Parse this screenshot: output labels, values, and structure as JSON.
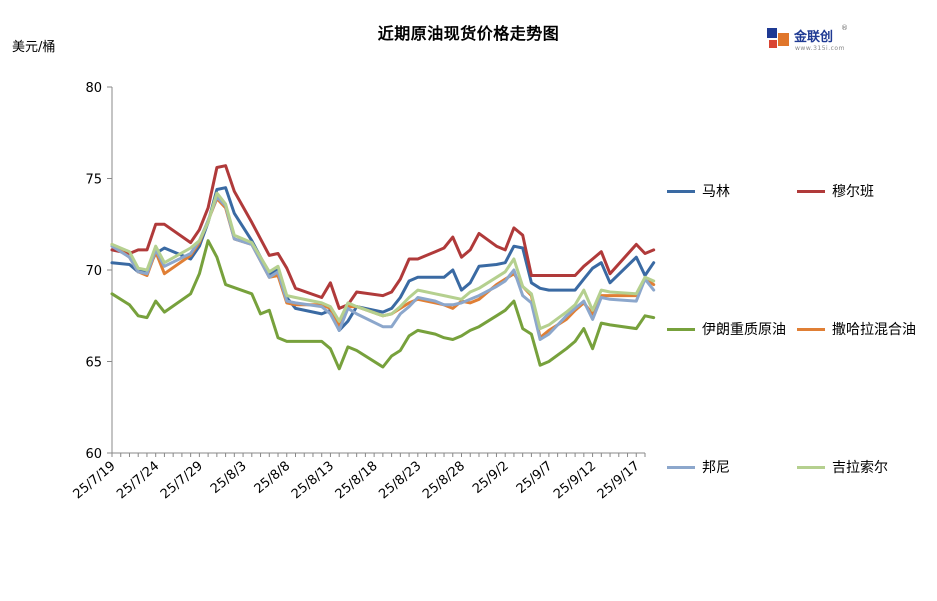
{
  "title": "近期原油现货价格走势图",
  "unit_label": "美元/桶",
  "logo": {
    "name": "金联创",
    "url": "www.315i.com",
    "mark": "®"
  },
  "chart_data": {
    "type": "line",
    "ylim": [
      60,
      80
    ],
    "yticks": [
      60,
      65,
      70,
      75,
      80
    ],
    "x_tick_labels": [
      "25/7/19",
      "25/7/24",
      "25/7/29",
      "25/8/3",
      "25/8/8",
      "25/8/13",
      "25/8/18",
      "25/8/23",
      "25/8/28",
      "25/9/2",
      "25/9/7",
      "25/9/12",
      "25/9/17"
    ],
    "x_tick_index": [
      0,
      5,
      10,
      15,
      20,
      25,
      30,
      35,
      40,
      45,
      50,
      55,
      60
    ],
    "x_dates": [
      "7/19",
      "7/20",
      "7/21",
      "7/22",
      "7/23",
      "7/24",
      "7/25",
      "7/26",
      "7/27",
      "7/28",
      "7/29",
      "7/30",
      "7/31",
      "8/1",
      "8/2",
      "8/3",
      "8/4",
      "8/5",
      "8/6",
      "8/7",
      "8/8",
      "8/9",
      "8/10",
      "8/11",
      "8/12",
      "8/13",
      "8/14",
      "8/15",
      "8/16",
      "8/17",
      "8/18",
      "8/19",
      "8/20",
      "8/21",
      "8/22",
      "8/23",
      "8/24",
      "8/25",
      "8/26",
      "8/27",
      "8/28",
      "8/29",
      "8/30",
      "8/31",
      "9/1",
      "9/2",
      "9/3",
      "9/4",
      "9/5",
      "9/6",
      "9/7",
      "9/8",
      "9/9",
      "9/10",
      "9/11",
      "9/12",
      "9/13",
      "9/14",
      "9/15",
      "9/16",
      "9/17",
      "9/18"
    ],
    "grid": false,
    "legend_position": "right",
    "series": [
      {
        "name": "马林",
        "color": "#3a6aa3",
        "points": [
          [
            0,
            70.4
          ],
          [
            2,
            70.3
          ],
          [
            3,
            69.9
          ],
          [
            4,
            70.0
          ],
          [
            5,
            70.9
          ],
          [
            6,
            71.2
          ],
          [
            9,
            70.6
          ],
          [
            10,
            71.3
          ],
          [
            11,
            72.6
          ],
          [
            12,
            74.4
          ],
          [
            13,
            74.5
          ],
          [
            14,
            73.1
          ],
          [
            16,
            71.6
          ],
          [
            18,
            69.8
          ],
          [
            19,
            70.0
          ],
          [
            20,
            68.5
          ],
          [
            21,
            67.9
          ],
          [
            24,
            67.6
          ],
          [
            25,
            67.8
          ],
          [
            26,
            66.7
          ],
          [
            27,
            67.2
          ],
          [
            28,
            68.0
          ],
          [
            31,
            67.7
          ],
          [
            32,
            67.9
          ],
          [
            33,
            68.5
          ],
          [
            34,
            69.4
          ],
          [
            35,
            69.6
          ],
          [
            37,
            69.6
          ],
          [
            38,
            69.6
          ],
          [
            39,
            70.0
          ],
          [
            40,
            68.9
          ],
          [
            41,
            69.3
          ],
          [
            42,
            70.2
          ],
          [
            44,
            70.3
          ],
          [
            45,
            70.4
          ],
          [
            46,
            71.3
          ],
          [
            47,
            71.2
          ],
          [
            48,
            69.3
          ],
          [
            49,
            69.0
          ],
          [
            50,
            68.9
          ],
          [
            52,
            68.9
          ],
          [
            53,
            68.9
          ],
          [
            54,
            69.5
          ],
          [
            55,
            70.1
          ],
          [
            56,
            70.4
          ],
          [
            57,
            69.3
          ],
          [
            60,
            70.7
          ],
          [
            61,
            69.7
          ],
          [
            62,
            70.4
          ]
        ]
      },
      {
        "name": "穆尔班",
        "color": "#b03a3a",
        "points": [
          [
            0,
            71.1
          ],
          [
            2,
            70.9
          ],
          [
            3,
            71.1
          ],
          [
            4,
            71.1
          ],
          [
            5,
            72.5
          ],
          [
            6,
            72.5
          ],
          [
            9,
            71.5
          ],
          [
            10,
            72.2
          ],
          [
            11,
            73.4
          ],
          [
            12,
            75.6
          ],
          [
            13,
            75.7
          ],
          [
            14,
            74.3
          ],
          [
            16,
            72.6
          ],
          [
            18,
            70.8
          ],
          [
            19,
            70.9
          ],
          [
            20,
            70.1
          ],
          [
            21,
            69.0
          ],
          [
            24,
            68.5
          ],
          [
            25,
            69.3
          ],
          [
            26,
            67.9
          ],
          [
            27,
            68.1
          ],
          [
            28,
            68.8
          ],
          [
            31,
            68.6
          ],
          [
            32,
            68.8
          ],
          [
            33,
            69.5
          ],
          [
            34,
            70.6
          ],
          [
            35,
            70.6
          ],
          [
            37,
            71.0
          ],
          [
            38,
            71.2
          ],
          [
            39,
            71.8
          ],
          [
            40,
            70.7
          ],
          [
            41,
            71.1
          ],
          [
            42,
            72.0
          ],
          [
            44,
            71.3
          ],
          [
            45,
            71.1
          ],
          [
            46,
            72.3
          ],
          [
            47,
            71.9
          ],
          [
            48,
            69.7
          ],
          [
            49,
            69.7
          ],
          [
            50,
            69.7
          ],
          [
            52,
            69.7
          ],
          [
            53,
            69.7
          ],
          [
            54,
            70.2
          ],
          [
            55,
            70.6
          ],
          [
            56,
            71.0
          ],
          [
            57,
            69.8
          ],
          [
            60,
            71.4
          ],
          [
            61,
            70.9
          ],
          [
            62,
            71.1
          ]
        ]
      },
      {
        "name": "伊朗重质原油",
        "color": "#77a13c",
        "points": [
          [
            0,
            68.7
          ],
          [
            2,
            68.1
          ],
          [
            3,
            67.5
          ],
          [
            4,
            67.4
          ],
          [
            5,
            68.3
          ],
          [
            6,
            67.7
          ],
          [
            9,
            68.7
          ],
          [
            10,
            69.8
          ],
          [
            11,
            71.6
          ],
          [
            12,
            70.7
          ],
          [
            13,
            69.2
          ],
          [
            16,
            68.7
          ],
          [
            17,
            67.6
          ],
          [
            18,
            67.8
          ],
          [
            19,
            66.3
          ],
          [
            20,
            66.1
          ],
          [
            24,
            66.1
          ],
          [
            25,
            65.7
          ],
          [
            26,
            64.6
          ],
          [
            27,
            65.8
          ],
          [
            28,
            65.6
          ],
          [
            31,
            64.7
          ],
          [
            32,
            65.3
          ],
          [
            33,
            65.6
          ],
          [
            34,
            66.4
          ],
          [
            35,
            66.7
          ],
          [
            37,
            66.5
          ],
          [
            38,
            66.3
          ],
          [
            39,
            66.2
          ],
          [
            40,
            66.4
          ],
          [
            41,
            66.7
          ],
          [
            42,
            66.9
          ],
          [
            44,
            67.5
          ],
          [
            45,
            67.8
          ],
          [
            46,
            68.3
          ],
          [
            47,
            66.8
          ],
          [
            48,
            66.5
          ],
          [
            49,
            64.8
          ],
          [
            50,
            65.0
          ],
          [
            52,
            65.7
          ],
          [
            53,
            66.1
          ],
          [
            54,
            66.8
          ],
          [
            55,
            65.7
          ],
          [
            56,
            67.1
          ],
          [
            57,
            67.0
          ],
          [
            60,
            66.8
          ],
          [
            61,
            67.5
          ],
          [
            62,
            67.4
          ]
        ]
      },
      {
        "name": "撒哈拉混合油",
        "color": "#e07f35",
        "points": [
          [
            0,
            71.4
          ],
          [
            2,
            70.7
          ],
          [
            3,
            69.9
          ],
          [
            4,
            69.7
          ],
          [
            5,
            71.0
          ],
          [
            6,
            69.8
          ],
          [
            9,
            70.8
          ],
          [
            10,
            71.5
          ],
          [
            11,
            72.7
          ],
          [
            12,
            73.9
          ],
          [
            13,
            73.4
          ],
          [
            14,
            71.7
          ],
          [
            16,
            71.4
          ],
          [
            18,
            69.6
          ],
          [
            19,
            69.7
          ],
          [
            20,
            68.2
          ],
          [
            21,
            68.1
          ],
          [
            24,
            68.1
          ],
          [
            25,
            67.9
          ],
          [
            26,
            66.9
          ],
          [
            27,
            68.0
          ],
          [
            28,
            68.0
          ],
          [
            31,
            67.5
          ],
          [
            32,
            67.6
          ],
          [
            33,
            67.9
          ],
          [
            34,
            68.2
          ],
          [
            35,
            68.4
          ],
          [
            37,
            68.2
          ],
          [
            38,
            68.1
          ],
          [
            39,
            67.9
          ],
          [
            40,
            68.3
          ],
          [
            41,
            68.2
          ],
          [
            42,
            68.4
          ],
          [
            44,
            69.2
          ],
          [
            45,
            69.5
          ],
          [
            46,
            69.8
          ],
          [
            47,
            69.1
          ],
          [
            48,
            68.6
          ],
          [
            49,
            66.3
          ],
          [
            50,
            66.7
          ],
          [
            52,
            67.3
          ],
          [
            53,
            67.8
          ],
          [
            54,
            68.2
          ],
          [
            55,
            67.6
          ],
          [
            56,
            68.6
          ],
          [
            57,
            68.6
          ],
          [
            60,
            68.6
          ],
          [
            61,
            69.5
          ],
          [
            62,
            69.2
          ]
        ]
      },
      {
        "name": "邦尼",
        "color": "#8ca7cc",
        "points": [
          [
            0,
            71.3
          ],
          [
            2,
            70.7
          ],
          [
            3,
            69.9
          ],
          [
            4,
            69.8
          ],
          [
            5,
            71.1
          ],
          [
            6,
            70.2
          ],
          [
            9,
            70.9
          ],
          [
            10,
            71.6
          ],
          [
            11,
            72.7
          ],
          [
            12,
            74.0
          ],
          [
            13,
            73.5
          ],
          [
            14,
            71.7
          ],
          [
            16,
            71.4
          ],
          [
            18,
            69.6
          ],
          [
            19,
            69.9
          ],
          [
            20,
            68.3
          ],
          [
            21,
            68.2
          ],
          [
            24,
            68.0
          ],
          [
            25,
            67.6
          ],
          [
            26,
            66.7
          ],
          [
            27,
            67.9
          ],
          [
            28,
            67.6
          ],
          [
            31,
            66.9
          ],
          [
            32,
            66.9
          ],
          [
            33,
            67.6
          ],
          [
            34,
            68.0
          ],
          [
            35,
            68.5
          ],
          [
            37,
            68.3
          ],
          [
            38,
            68.1
          ],
          [
            39,
            68.1
          ],
          [
            40,
            68.2
          ],
          [
            41,
            68.4
          ],
          [
            42,
            68.6
          ],
          [
            44,
            69.1
          ],
          [
            45,
            69.4
          ],
          [
            46,
            70.0
          ],
          [
            47,
            68.6
          ],
          [
            48,
            68.2
          ],
          [
            49,
            66.2
          ],
          [
            50,
            66.5
          ],
          [
            52,
            67.5
          ],
          [
            53,
            67.9
          ],
          [
            54,
            68.3
          ],
          [
            55,
            67.3
          ],
          [
            56,
            68.5
          ],
          [
            57,
            68.4
          ],
          [
            60,
            68.3
          ],
          [
            61,
            69.5
          ],
          [
            62,
            68.9
          ]
        ]
      },
      {
        "name": "吉拉索尔",
        "color": "#b5d08f",
        "points": [
          [
            0,
            71.4
          ],
          [
            2,
            71.0
          ],
          [
            3,
            70.1
          ],
          [
            4,
            70.0
          ],
          [
            5,
            71.3
          ],
          [
            6,
            70.4
          ],
          [
            9,
            71.2
          ],
          [
            10,
            71.6
          ],
          [
            11,
            72.6
          ],
          [
            12,
            74.2
          ],
          [
            13,
            73.6
          ],
          [
            14,
            71.9
          ],
          [
            16,
            71.5
          ],
          [
            18,
            69.9
          ],
          [
            19,
            70.2
          ],
          [
            20,
            68.6
          ],
          [
            21,
            68.5
          ],
          [
            24,
            68.2
          ],
          [
            25,
            68.0
          ],
          [
            26,
            67.2
          ],
          [
            27,
            68.2
          ],
          [
            28,
            68.0
          ],
          [
            31,
            67.5
          ],
          [
            32,
            67.6
          ],
          [
            33,
            68.0
          ],
          [
            34,
            68.5
          ],
          [
            35,
            68.9
          ],
          [
            37,
            68.7
          ],
          [
            38,
            68.6
          ],
          [
            39,
            68.5
          ],
          [
            40,
            68.4
          ],
          [
            41,
            68.8
          ],
          [
            42,
            69.0
          ],
          [
            44,
            69.6
          ],
          [
            45,
            69.9
          ],
          [
            46,
            70.6
          ],
          [
            47,
            69.1
          ],
          [
            48,
            68.7
          ],
          [
            49,
            66.8
          ],
          [
            50,
            67.0
          ],
          [
            52,
            67.7
          ],
          [
            53,
            68.1
          ],
          [
            54,
            68.9
          ],
          [
            55,
            67.8
          ],
          [
            56,
            68.9
          ],
          [
            57,
            68.8
          ],
          [
            60,
            68.7
          ],
          [
            61,
            69.6
          ],
          [
            62,
            69.4
          ]
        ]
      }
    ]
  }
}
